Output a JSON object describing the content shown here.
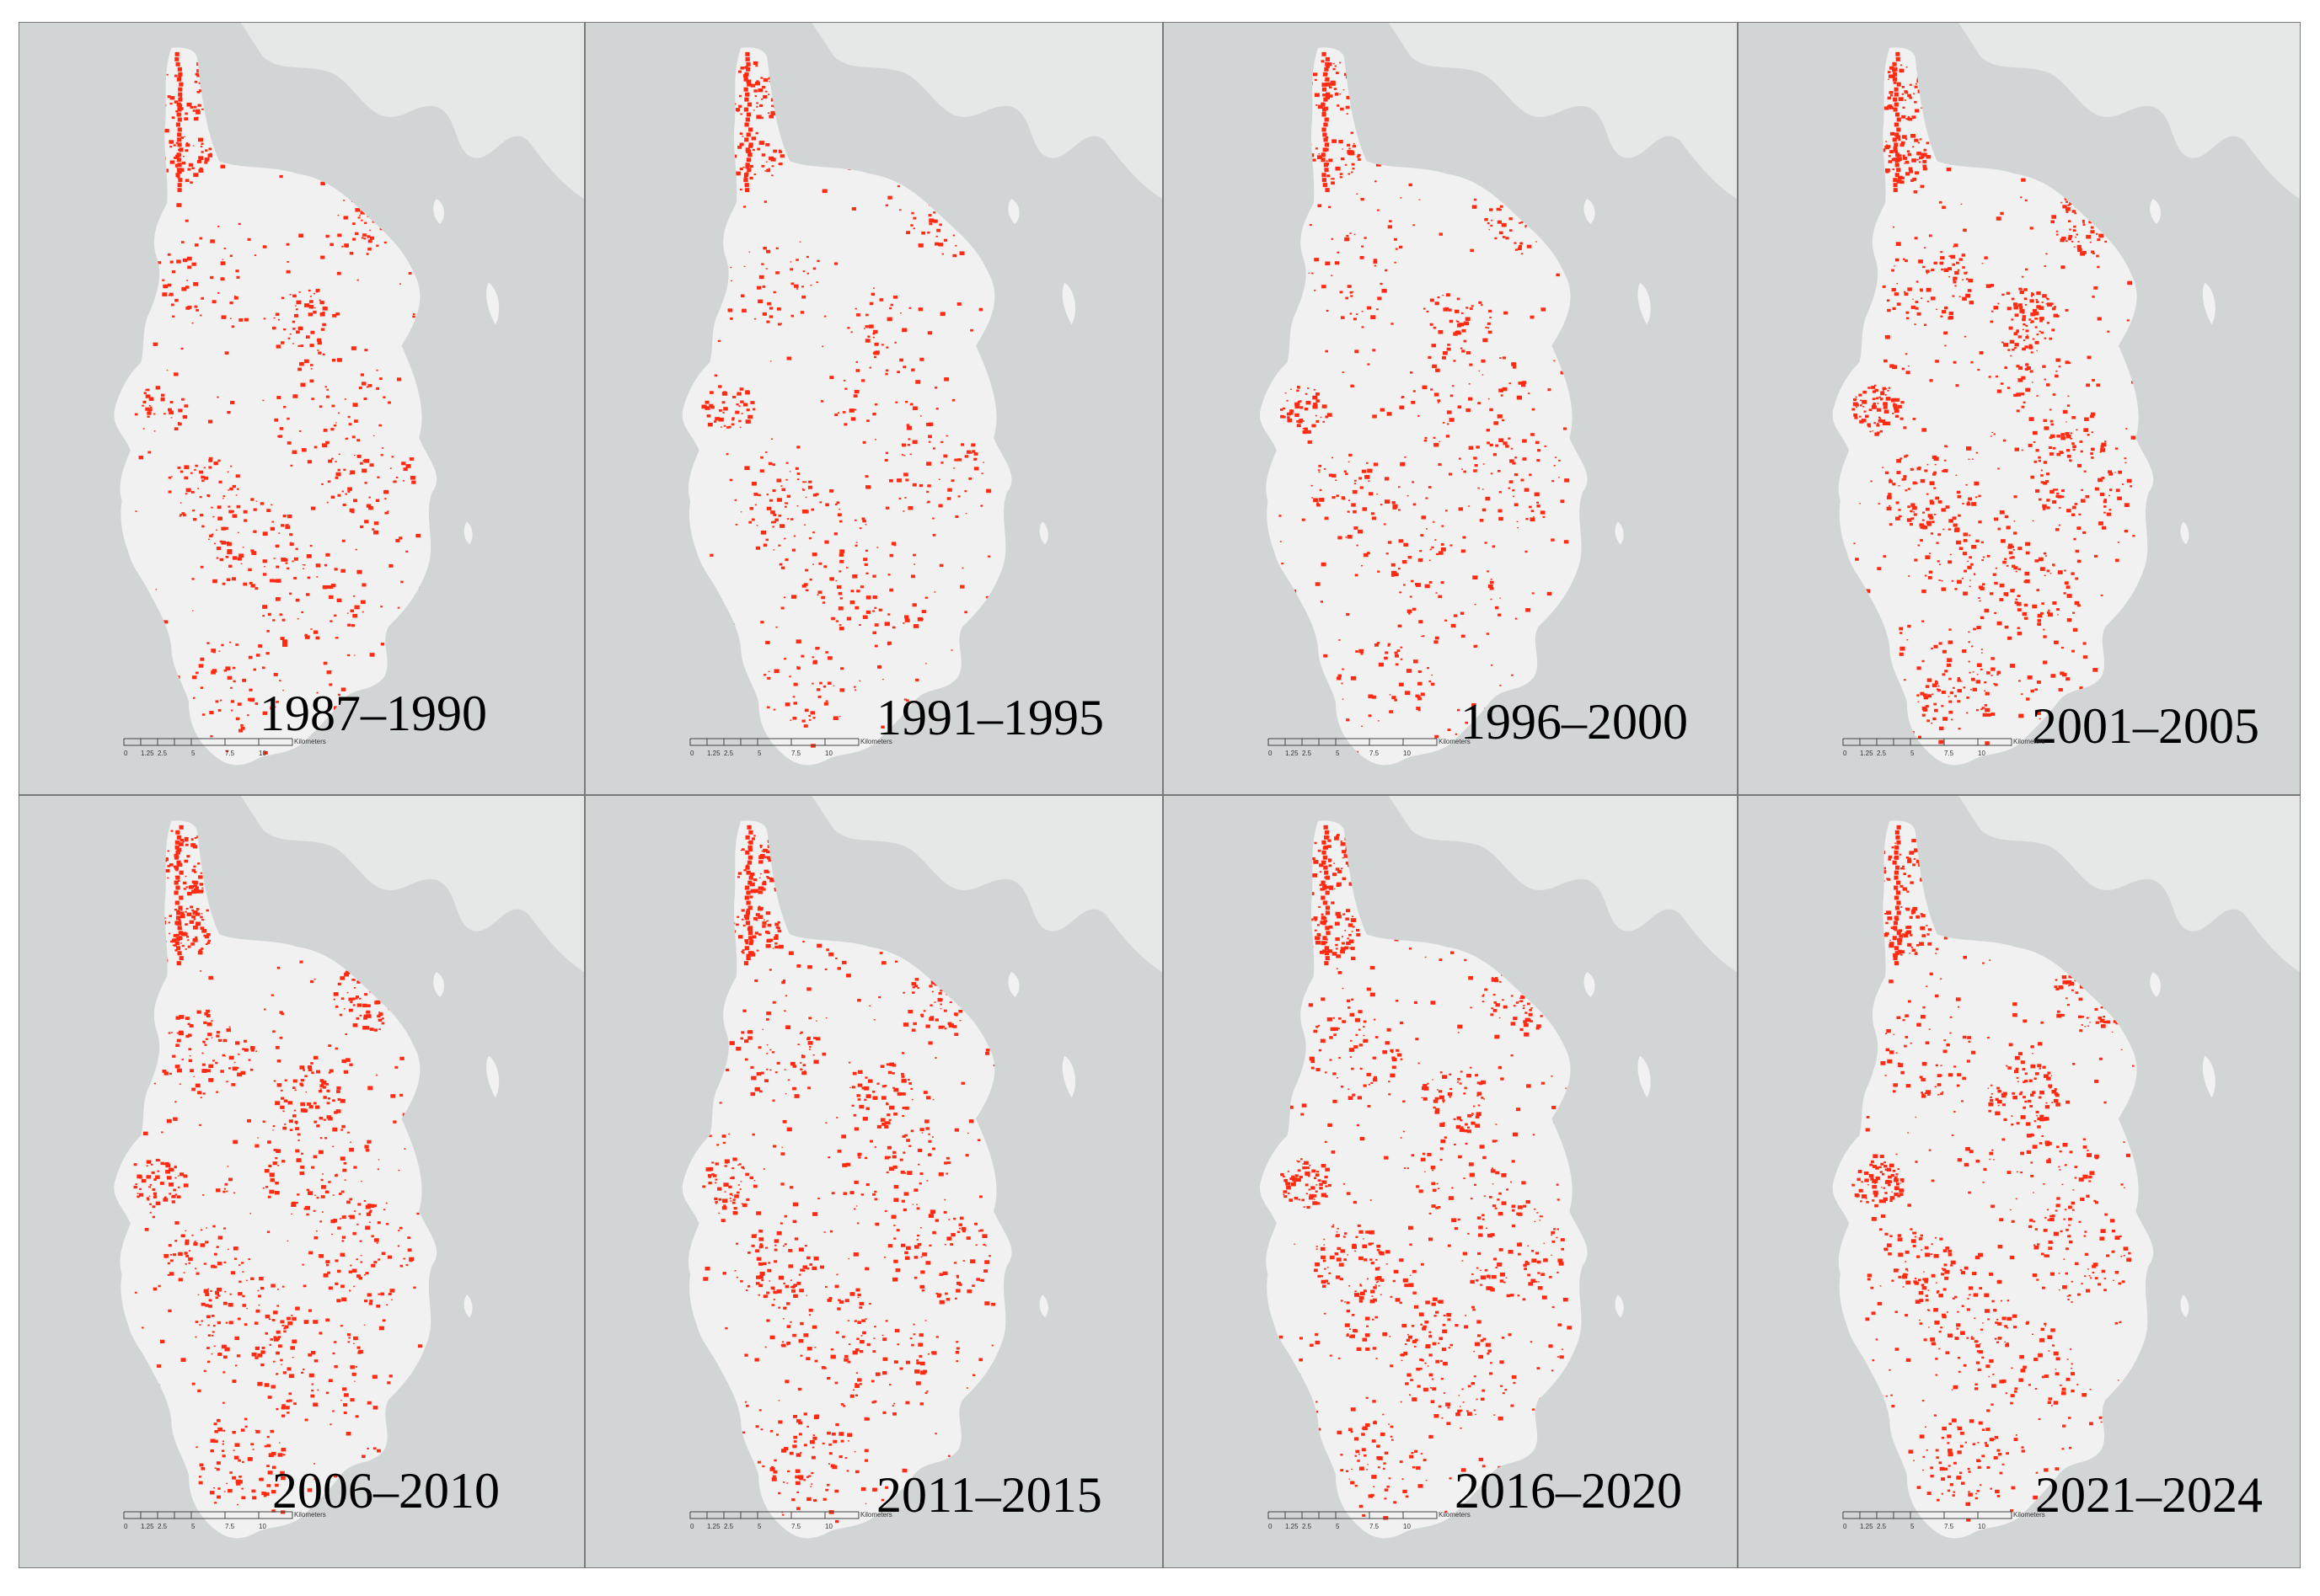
{
  "panels": [
    {
      "period": "1987–1990",
      "density": 0.55
    },
    {
      "period": "1991–1995",
      "density": 0.5
    },
    {
      "period": "1996–2000",
      "density": 0.52
    },
    {
      "period": "2001–2005",
      "density": 0.85
    },
    {
      "period": "2006–2010",
      "density": 0.78
    },
    {
      "period": "2011–2015",
      "density": 0.72
    },
    {
      "period": "2016–2020",
      "density": 0.76
    },
    {
      "period": "2021–2024",
      "density": 0.74
    }
  ],
  "scale_bar": {
    "ticks": [
      "0",
      "1.25",
      "2.5",
      "5",
      "7.5",
      "10"
    ],
    "unit": "Kilometers"
  },
  "colors": {
    "sea": "#d2d5d6",
    "land": "#f1f1f1",
    "other_land": "#e6e7e7",
    "change": "#ff2a12"
  }
}
